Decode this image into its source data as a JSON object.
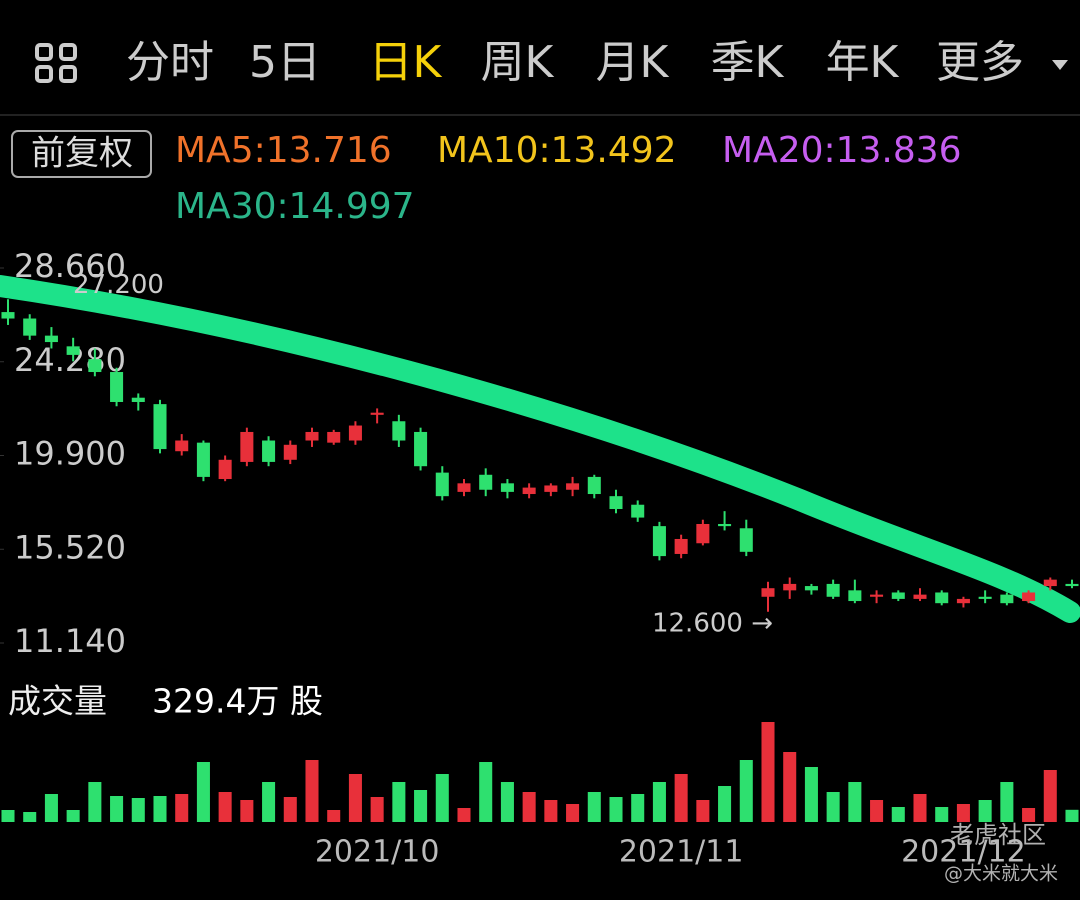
{
  "header": {
    "tabs": [
      "分时",
      "5日",
      "日K",
      "周K",
      "月K",
      "季K",
      "年K"
    ],
    "active_tab": 2,
    "more": "更多"
  },
  "indicators": {
    "adjust": "前复权",
    "ma": [
      {
        "label": "MA5:13.716",
        "color": "#f0722a"
      },
      {
        "label": "MA10:13.492",
        "color": "#f2c41c"
      },
      {
        "label": "MA20:13.836",
        "color": "#c65ef0"
      },
      {
        "label": "MA30:14.997",
        "color": "#2bb58a"
      }
    ]
  },
  "volume_panel": {
    "title": "成交量",
    "current": "329.4万 股"
  },
  "watermark": {
    "brand": "老虎社区",
    "author": "@大米就大米"
  },
  "chart_data": {
    "type": "candlestick",
    "up_color": "#e8303a",
    "down_color": "#2ee06f",
    "ylim": [
      11.14,
      28.66
    ],
    "yticks": [
      {
        "value": 28.66,
        "label": "28.660"
      },
      {
        "value": 24.28,
        "label": "24.280"
      },
      {
        "value": 19.9,
        "label": "19.900"
      },
      {
        "value": 15.52,
        "label": "15.520"
      },
      {
        "value": 11.14,
        "label": "11.140"
      }
    ],
    "annotations": [
      {
        "value": 27.2,
        "label": "27.200",
        "index": 0
      },
      {
        "value": 12.6,
        "label": "12.600 →",
        "index": 35
      }
    ],
    "categories": [
      null,
      null,
      null,
      null,
      null,
      null,
      null,
      null,
      null,
      null,
      null,
      null,
      null,
      null,
      null,
      null,
      null,
      "2021/10",
      null,
      null,
      null,
      null,
      null,
      null,
      null,
      null,
      null,
      null,
      null,
      null,
      null,
      "2021/11",
      null,
      null,
      null,
      null,
      null,
      null,
      null,
      null,
      null,
      null,
      null,
      null,
      "2021/12",
      null,
      null,
      null,
      null,
      null
    ],
    "candles": [
      [
        26.6,
        27.2,
        26.0,
        26.3
      ],
      [
        26.3,
        26.5,
        25.3,
        25.5
      ],
      [
        25.5,
        25.9,
        24.9,
        25.2
      ],
      [
        25.0,
        25.4,
        24.3,
        24.6
      ],
      [
        24.4,
        24.9,
        23.6,
        23.8
      ],
      [
        23.8,
        24.0,
        22.2,
        22.4
      ],
      [
        22.6,
        22.8,
        22.0,
        22.4
      ],
      [
        22.3,
        22.5,
        20.0,
        20.2
      ],
      [
        20.1,
        20.9,
        19.9,
        20.6
      ],
      [
        20.5,
        20.6,
        18.7,
        18.9
      ],
      [
        18.8,
        19.9,
        18.7,
        19.7
      ],
      [
        19.6,
        21.2,
        19.4,
        21.0
      ],
      [
        20.6,
        20.8,
        19.4,
        19.6
      ],
      [
        19.7,
        20.6,
        19.5,
        20.4
      ],
      [
        20.6,
        21.2,
        20.3,
        21.0
      ],
      [
        20.5,
        21.1,
        20.4,
        21.0
      ],
      [
        20.6,
        21.5,
        20.4,
        21.3
      ],
      [
        21.8,
        22.1,
        21.4,
        21.9
      ],
      [
        21.5,
        21.8,
        20.3,
        20.6
      ],
      [
        21.0,
        21.2,
        19.2,
        19.4
      ],
      [
        19.1,
        19.4,
        17.8,
        18.0
      ],
      [
        18.2,
        18.8,
        18.0,
        18.6
      ],
      [
        19.0,
        19.3,
        18.0,
        18.3
      ],
      [
        18.6,
        18.8,
        17.9,
        18.2
      ],
      [
        18.1,
        18.6,
        17.9,
        18.4
      ],
      [
        18.2,
        18.6,
        18.0,
        18.5
      ],
      [
        18.3,
        18.9,
        18.0,
        18.6
      ],
      [
        18.9,
        19.0,
        17.9,
        18.1
      ],
      [
        18.0,
        18.3,
        17.2,
        17.4
      ],
      [
        17.6,
        17.8,
        16.8,
        17.0
      ],
      [
        16.6,
        16.8,
        15.0,
        15.2
      ],
      [
        15.3,
        16.2,
        15.1,
        16.0
      ],
      [
        15.8,
        16.9,
        15.7,
        16.7
      ],
      [
        16.7,
        17.3,
        16.4,
        16.6
      ],
      [
        16.5,
        16.9,
        15.2,
        15.4
      ],
      [
        13.3,
        14.0,
        12.6,
        13.7
      ],
      [
        13.6,
        14.2,
        13.2,
        13.9
      ],
      [
        13.8,
        13.9,
        13.4,
        13.6
      ],
      [
        13.9,
        14.1,
        13.2,
        13.3
      ],
      [
        13.6,
        14.1,
        13.0,
        13.1
      ],
      [
        13.3,
        13.6,
        13.0,
        13.4
      ],
      [
        13.5,
        13.6,
        13.1,
        13.2
      ],
      [
        13.2,
        13.7,
        13.1,
        13.4
      ],
      [
        13.5,
        13.6,
        12.9,
        13.0
      ],
      [
        13.0,
        13.3,
        12.8,
        13.2
      ],
      [
        13.3,
        13.6,
        13.0,
        13.2
      ],
      [
        13.4,
        13.5,
        12.9,
        13.0
      ],
      [
        13.1,
        13.6,
        13.0,
        13.5
      ],
      [
        13.8,
        14.2,
        13.6,
        14.1
      ],
      [
        13.9,
        14.1,
        13.7,
        13.8
      ]
    ],
    "volumes": [
      324,
      270,
      756,
      324,
      1080,
      702,
      648,
      702,
      756,
      1620,
      810,
      594,
      1080,
      675,
      1674,
      324,
      1296,
      675,
      1080,
      864,
      1296,
      378,
      1620,
      1080,
      810,
      594,
      486,
      810,
      675,
      756,
      1080,
      1296,
      594,
      972,
      1674,
      2700,
      1890,
      1485,
      810,
      1080,
      594,
      405,
      756,
      405,
      486,
      594,
      1080,
      378,
      1404,
      329.4
    ]
  }
}
